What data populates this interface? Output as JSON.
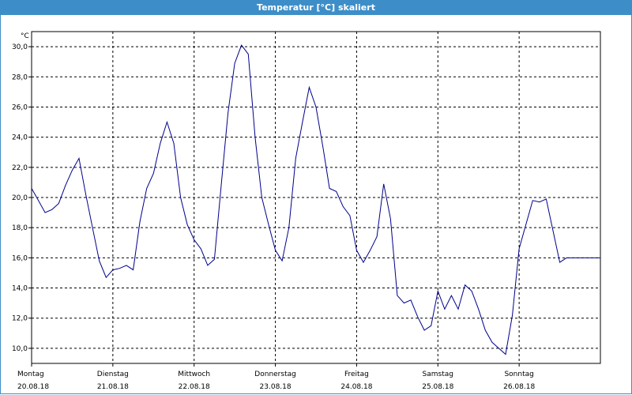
{
  "window": {
    "title": "Temperatur [°C] skaliert"
  },
  "chart_data": {
    "type": "line",
    "title": "Temperatur [°C] skaliert",
    "ylabel": "°C",
    "xlabel": "",
    "ylim": [
      9.0,
      31.0
    ],
    "yticks": [
      10,
      12,
      14,
      16,
      18,
      20,
      22,
      24,
      26,
      28,
      30
    ],
    "ytick_labels": [
      "10,0",
      "12,0",
      "14,0",
      "16,0",
      "18,0",
      "20,0",
      "22,0",
      "24,0",
      "26,0",
      "28,0",
      "30,0"
    ],
    "xlim": [
      0,
      168
    ],
    "day_ticks": [
      {
        "day": "Montag",
        "date": "20.08.18"
      },
      {
        "day": "Dienstag",
        "date": "21.08.18"
      },
      {
        "day": "Mittwoch",
        "date": "22.08.18"
      },
      {
        "day": "Donnerstag",
        "date": "23.08.18"
      },
      {
        "day": "Freitag",
        "date": "24.08.18"
      },
      {
        "day": "Samstag",
        "date": "25.08.18"
      },
      {
        "day": "Sonntag",
        "date": "26.08.18"
      }
    ],
    "grid": true,
    "line_color": "#00008b",
    "series": [
      {
        "x": [
          0,
          2,
          4,
          6,
          8,
          10,
          12,
          14,
          16,
          18,
          20,
          22,
          24,
          26,
          28,
          30,
          32,
          34,
          36,
          38,
          40,
          42,
          44,
          46,
          48,
          50,
          52,
          54,
          56,
          58,
          60,
          62,
          64,
          66,
          68,
          70,
          72,
          74,
          76,
          78,
          80,
          82,
          84,
          86,
          88,
          90,
          92,
          94,
          96,
          98,
          100,
          102,
          104,
          106,
          108,
          110,
          112,
          114,
          116,
          118,
          120,
          122,
          124,
          126,
          128,
          130,
          132,
          134,
          136,
          138,
          140,
          142,
          144,
          146,
          148,
          150,
          152,
          154,
          156,
          158,
          160,
          162,
          164,
          166,
          168
        ],
        "y": [
          20.6,
          19.8,
          19.0,
          19.2,
          19.6,
          20.8,
          21.8,
          22.6,
          20.2,
          18.0,
          15.8,
          14.7,
          15.2,
          15.3,
          15.5,
          15.2,
          18.4,
          20.6,
          21.6,
          23.6,
          25.0,
          23.6,
          20.0,
          18.2,
          17.2,
          16.6,
          15.5,
          15.9,
          20.8,
          25.6,
          28.9,
          30.1,
          29.5,
          24.0,
          20.0,
          18.2,
          16.5,
          15.8,
          18.0,
          22.6,
          25.0,
          27.3,
          26.0,
          23.4,
          20.6,
          20.4,
          19.4,
          18.8,
          16.5,
          15.7,
          16.5,
          17.4,
          20.9,
          18.6,
          13.5,
          13.0,
          13.2,
          12.1,
          11.2,
          11.5,
          13.8,
          12.6,
          13.5,
          12.6,
          14.2,
          13.8,
          12.6,
          11.2,
          10.4,
          10.0,
          9.6,
          12.2,
          16.6,
          18.2,
          19.8,
          19.7,
          19.9,
          17.8,
          15.7,
          16.0,
          16.0,
          16.0,
          16.0,
          16.0,
          16.0
        ]
      }
    ]
  }
}
